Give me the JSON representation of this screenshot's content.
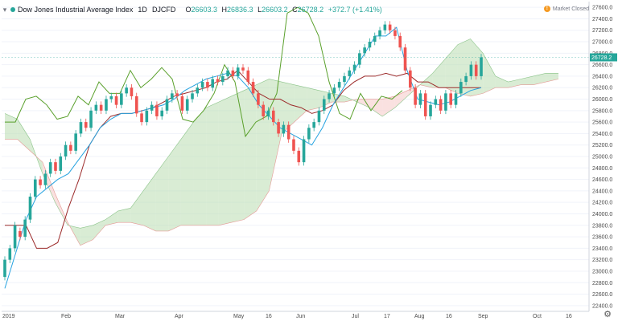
{
  "header": {
    "title": "Dow Jones Industrial Average Index",
    "interval": "1D",
    "source": "DJCFD",
    "ohlc": [
      {
        "k": "O",
        "v": "26603.3"
      },
      {
        "k": "H",
        "v": "26836.3"
      },
      {
        "k": "L",
        "v": "26603.2"
      },
      {
        "k": "C",
        "v": "26728.2"
      }
    ],
    "change": "+372.7 (+1.41%)",
    "market_status": "Market Closed"
  },
  "colors": {
    "up": "#26a69a",
    "down": "#ef5350",
    "tenkan": "#26a3e0",
    "kijun": "#9c2b2b",
    "chikou": "#5aa02c",
    "cloud_bull": "#b9dcb0",
    "cloud_bear": "#f6c9c6",
    "price_label": "#26a69a"
  },
  "chart_data": {
    "type": "candlestick-ichimoku",
    "title": "Dow Jones Industrial Average Index",
    "ylim": [
      22300,
      27700
    ],
    "y_ticks": [
      22400,
      22600,
      22800,
      23000,
      23200,
      23400,
      23600,
      23800,
      24000,
      24200,
      24400,
      24600,
      24800,
      25000,
      25200,
      25400,
      25600,
      25800,
      26000,
      26200,
      26400,
      26600,
      26800,
      27000,
      27200,
      27400,
      27600
    ],
    "x_labels": [
      "2019",
      "Feb",
      "Mar",
      "Apr",
      "May",
      "16",
      "Jun",
      "Jul",
      "17",
      "Aug",
      "16",
      "Sep",
      "Oct",
      "16"
    ],
    "last_price": "26728.2",
    "tenkan": [
      22700,
      23300,
      23900,
      24300,
      24450,
      24600,
      24700,
      24950,
      25200,
      25500,
      25650,
      25750,
      25750,
      25800,
      25850,
      25900,
      26000,
      26150,
      26250,
      26350,
      26400,
      26450,
      26400,
      26200,
      25900,
      25700,
      25500,
      25400,
      25300,
      25200,
      25500,
      25900,
      26200,
      26500,
      26800,
      27100,
      27100,
      27250,
      26500,
      26000,
      25950,
      25900,
      25950,
      26050,
      26150,
      26200
    ],
    "kijun": [
      23800,
      23800,
      23800,
      23400,
      23400,
      23500,
      24100,
      24600,
      25200,
      25500,
      25700,
      25750,
      25750,
      25800,
      25850,
      25950,
      26050,
      26100,
      26150,
      26200,
      26300,
      26350,
      26500,
      26300,
      26100,
      26000,
      26000,
      25900,
      25850,
      25750,
      25800,
      25900,
      26150,
      26300,
      26400,
      26400,
      26450,
      26400,
      26450,
      26300,
      26300,
      26200,
      26200,
      26200,
      26200,
      26200
    ],
    "chikou": [
      25600,
      25600,
      26000,
      26050,
      25900,
      25650,
      25700,
      26050,
      25900,
      26300,
      26100,
      26100,
      26500,
      26200,
      26350,
      26550,
      26350,
      25650,
      25600,
      25800,
      26100,
      26600,
      26300,
      25350,
      25600,
      25700,
      26100,
      27500,
      27600,
      27500,
      27100,
      26300,
      25750,
      25650,
      26100,
      25800,
      26050,
      26000,
      26150
    ],
    "spanA": [
      25750,
      25650,
      25300,
      24700,
      24200,
      23800,
      23750,
      23800,
      23900,
      24050,
      24100,
      24400,
      24700,
      25000,
      25300,
      25600,
      25850,
      25950,
      26050,
      26150,
      26250,
      26350,
      26300,
      26250,
      26200,
      26150,
      26100,
      26050,
      25950,
      25850,
      25700,
      25850,
      26050,
      26250,
      26450,
      26700,
      26950,
      27050,
      26800,
      26400,
      26300,
      26350,
      26400,
      26450,
      26450
    ],
    "spanB": [
      25300,
      25300,
      25100,
      24900,
      24350,
      23850,
      23450,
      23550,
      23800,
      23850,
      23850,
      23800,
      23700,
      23700,
      23800,
      23800,
      23800,
      23800,
      23850,
      23900,
      24050,
      24400,
      25400,
      25600,
      25800,
      25850,
      25950,
      25950,
      26000,
      26000,
      26000,
      26050,
      26150,
      26250,
      26200,
      26200,
      26100,
      26050,
      26100,
      26200,
      26200,
      26250,
      26250,
      26300,
      26350
    ],
    "candles": [
      [
        22900,
        23200
      ],
      [
        23200,
        23400
      ],
      [
        23400,
        23800
      ],
      [
        23700,
        23600
      ],
      [
        23600,
        23900
      ],
      [
        23900,
        24300
      ],
      [
        24300,
        24600
      ],
      [
        24600,
        24500
      ],
      [
        24500,
        24700
      ],
      [
        24700,
        24900
      ],
      [
        24900,
        24750
      ],
      [
        24750,
        25000
      ],
      [
        25000,
        25200
      ],
      [
        25200,
        25100
      ],
      [
        25100,
        25400
      ],
      [
        25400,
        25600
      ],
      [
        25600,
        25500
      ],
      [
        25500,
        25800
      ],
      [
        25800,
        25900
      ],
      [
        25900,
        25800
      ],
      [
        25800,
        26000
      ],
      [
        26000,
        26050
      ],
      [
        26050,
        25900
      ],
      [
        25900,
        26100
      ],
      [
        26100,
        26200
      ],
      [
        26200,
        26050
      ],
      [
        26050,
        25750
      ],
      [
        25750,
        25600
      ],
      [
        25600,
        25800
      ],
      [
        25800,
        25900
      ],
      [
        25900,
        25700
      ],
      [
        25700,
        25800
      ],
      [
        25800,
        26000
      ],
      [
        26000,
        26100
      ],
      [
        26100,
        26050
      ],
      [
        26050,
        25800
      ],
      [
        25800,
        26000
      ],
      [
        26000,
        26100
      ],
      [
        26100,
        26200
      ],
      [
        26200,
        26300
      ],
      [
        26300,
        26200
      ],
      [
        26200,
        26350
      ],
      [
        26350,
        26300
      ],
      [
        26300,
        26400
      ],
      [
        26400,
        26500
      ],
      [
        26500,
        26400
      ],
      [
        26400,
        26550
      ],
      [
        26550,
        26500
      ],
      [
        26500,
        26300
      ],
      [
        26300,
        26100
      ],
      [
        26100,
        25900
      ],
      [
        25900,
        25700
      ],
      [
        25700,
        25800
      ],
      [
        25800,
        25600
      ],
      [
        25600,
        25400
      ],
      [
        25400,
        25550
      ],
      [
        25550,
        25300
      ],
      [
        25300,
        25100
      ],
      [
        25100,
        24900
      ],
      [
        24900,
        25300
      ],
      [
        25300,
        25500
      ],
      [
        25500,
        25600
      ],
      [
        25600,
        25800
      ],
      [
        25800,
        26000
      ],
      [
        26000,
        26100
      ],
      [
        26100,
        26200
      ],
      [
        26200,
        26300
      ],
      [
        26300,
        26400
      ],
      [
        26400,
        26500
      ],
      [
        26500,
        26600
      ],
      [
        26600,
        26800
      ],
      [
        26800,
        26900
      ],
      [
        26900,
        27000
      ],
      [
        27000,
        27100
      ],
      [
        27100,
        27200
      ],
      [
        27200,
        27300
      ],
      [
        27300,
        27200
      ],
      [
        27200,
        27100
      ],
      [
        27100,
        26900
      ],
      [
        26900,
        26500
      ],
      [
        26500,
        26200
      ],
      [
        26200,
        25900
      ],
      [
        25900,
        26100
      ],
      [
        26100,
        25700
      ],
      [
        25700,
        25900
      ],
      [
        25900,
        26000
      ],
      [
        26000,
        25800
      ],
      [
        25800,
        26100
      ],
      [
        26100,
        25900
      ],
      [
        25900,
        26100
      ],
      [
        26100,
        26300
      ],
      [
        26300,
        26400
      ],
      [
        26400,
        26600
      ],
      [
        26600,
        26400
      ],
      [
        26400,
        26728
      ]
    ]
  }
}
